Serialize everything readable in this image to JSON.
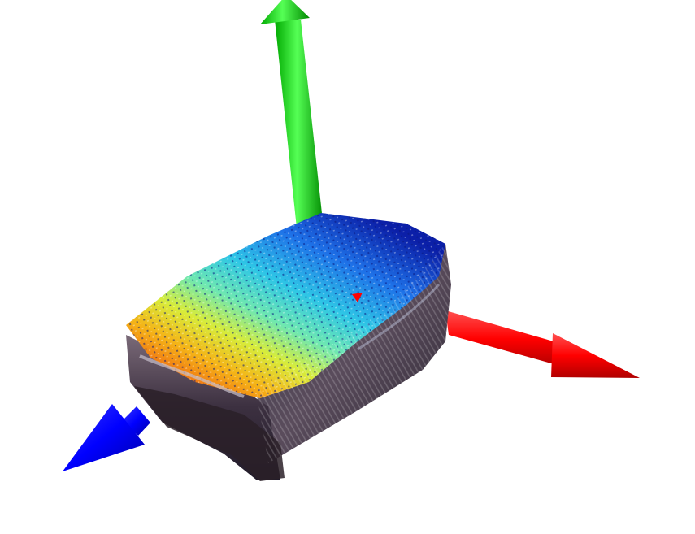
{
  "viewer": {
    "background": "#ffffff"
  },
  "axes": {
    "x": {
      "color": "#ff0000"
    },
    "y": {
      "color": "#00e000"
    },
    "z": {
      "color": "#0000ff"
    }
  },
  "point_cloud": {
    "object": "box",
    "colormap": [
      "#0b1fa8",
      "#1e72e8",
      "#2ec6e6",
      "#6fe8b0",
      "#d8ec3a",
      "#f5b317",
      "#ef6a12"
    ],
    "side_colors": [
      "#2b2838",
      "#4a3a48",
      "#6b5a66",
      "#9a8a96"
    ],
    "marker_color": "#ff0000"
  }
}
